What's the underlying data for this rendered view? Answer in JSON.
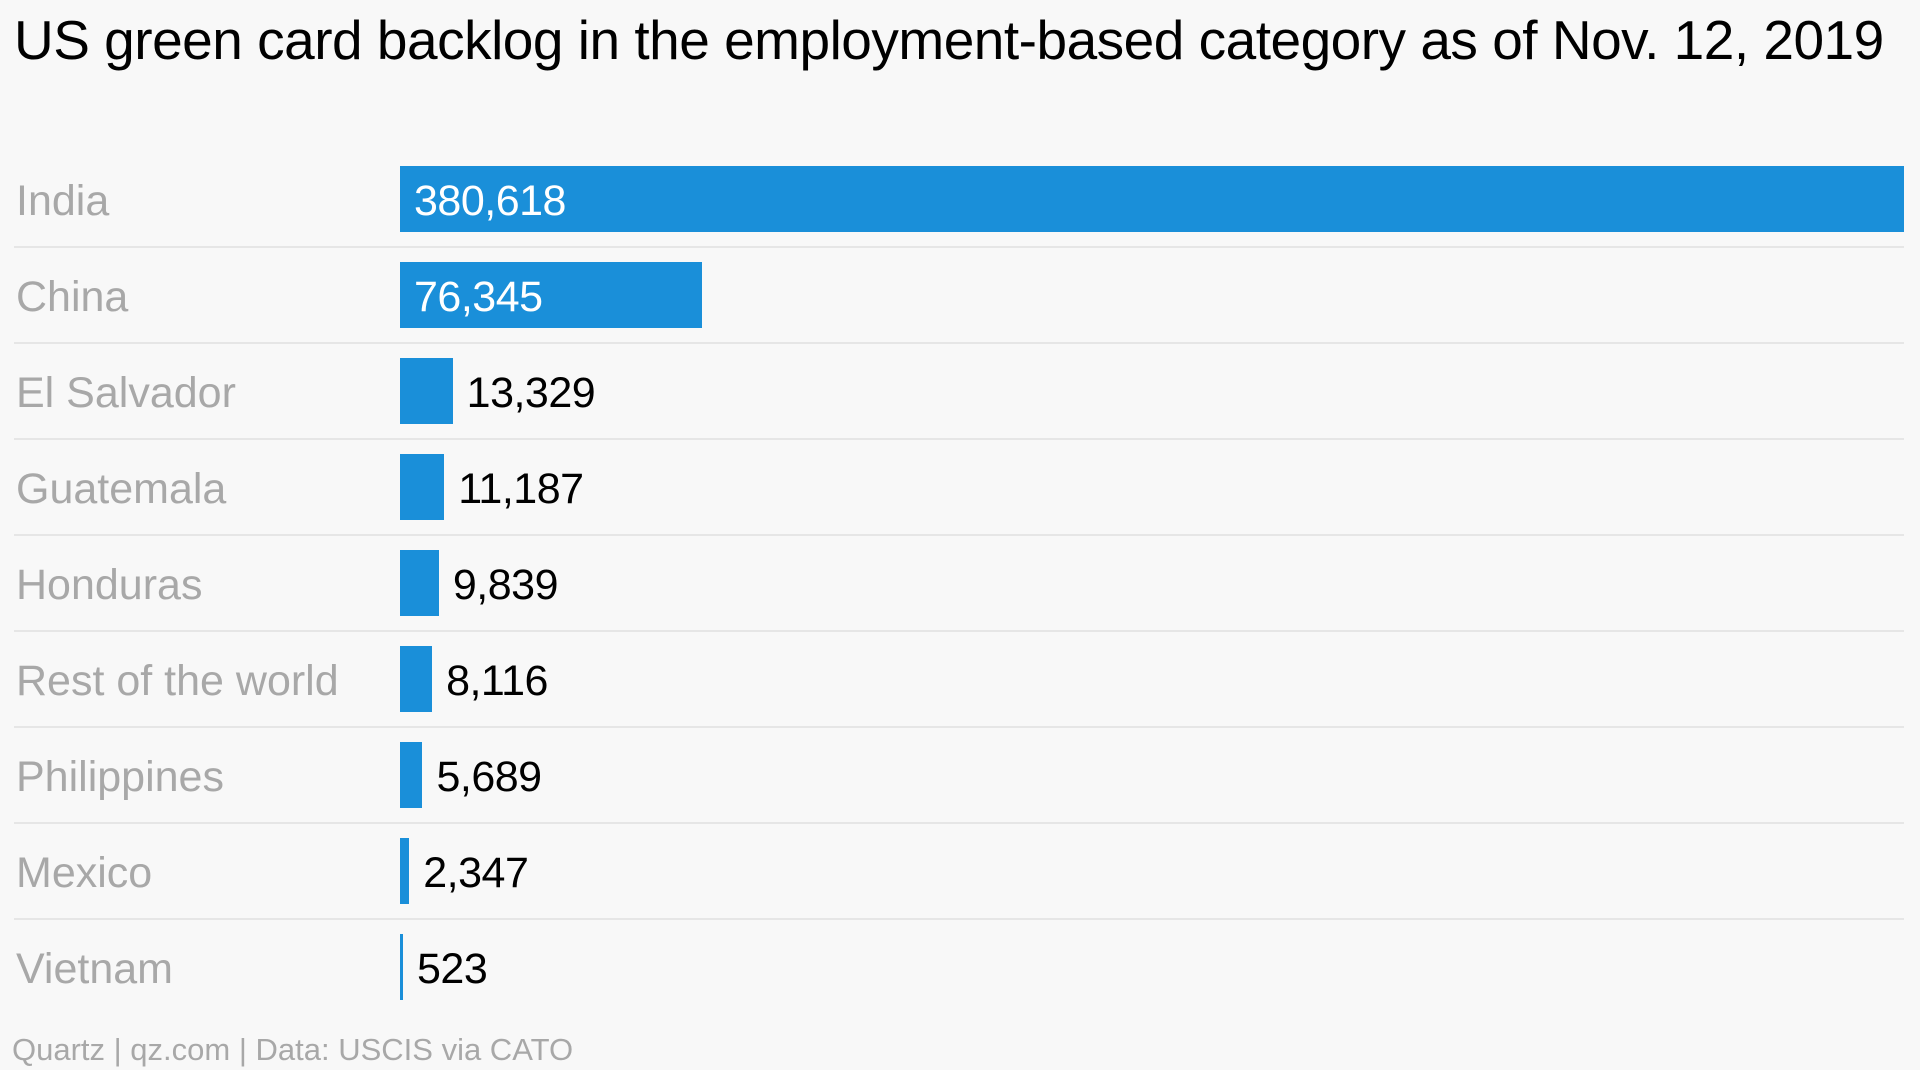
{
  "title": "US green card backlog in the employment-based category as of Nov. 12, 2019",
  "footer": "Quartz | qz.com | Data: USCIS via CATO",
  "colors": {
    "bar": "#1a8fd9",
    "category_label": "#a8a8a8",
    "value_inside": "#ffffff",
    "value_outside": "#000000",
    "divider": "#e6e6e6",
    "background": "#f8f8f8"
  },
  "chart_data": {
    "type": "bar",
    "orientation": "horizontal",
    "title": "US green card backlog in the employment-based category as of Nov. 12, 2019",
    "categories": [
      "India",
      "China",
      "El Salvador",
      "Guatemala",
      "Honduras",
      "Rest of the world",
      "Philippines",
      "Mexico",
      "Vietnam"
    ],
    "values": [
      380618,
      76345,
      13329,
      11187,
      9839,
      8116,
      5689,
      2347,
      523
    ],
    "value_labels": [
      "380,618",
      "76,345",
      "13,329",
      "11,187",
      "9,839",
      "8,116",
      "5,689",
      "2,347",
      "523"
    ],
    "xlim": [
      0,
      380618
    ],
    "grid": false,
    "axes_visible": false,
    "legend": "none"
  }
}
